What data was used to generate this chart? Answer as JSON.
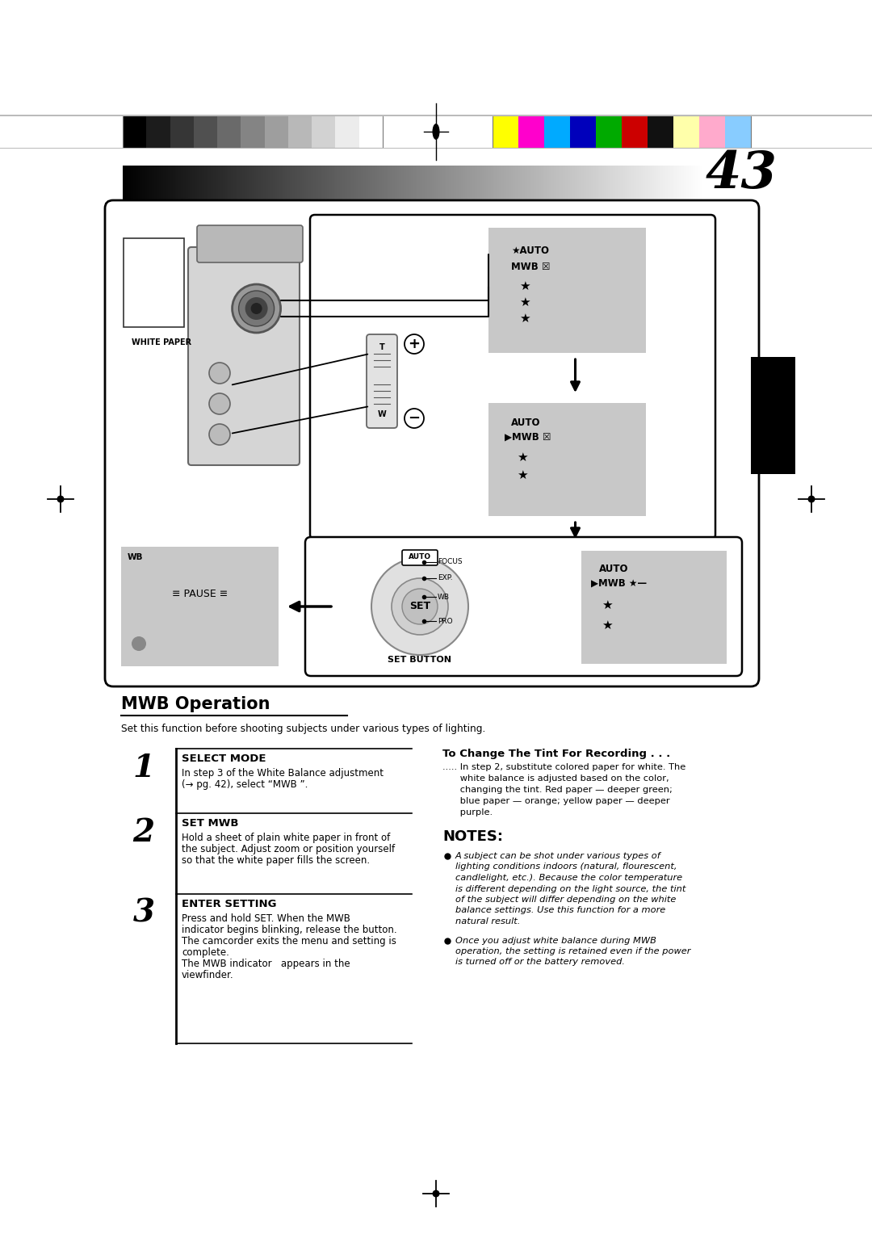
{
  "page_number": "43",
  "background_color": "#ffffff",
  "section_title": "MWB Operation",
  "section_subtitle": "Set this function before shooting subjects under various types of lighting.",
  "step1_title": "SELECT MODE",
  "step1_text_line1": "In step 3 of the White Balance adjustment",
  "step1_text_line2": "(→ pg. 42), select “MWB ”.",
  "step2_title": "SET MWB",
  "step2_text_line1": "Hold a sheet of plain white paper in front of",
  "step2_text_line2": "the subject. Adjust zoom or position yourself",
  "step2_text_line3": "so that the white paper fills the screen.",
  "step3_title": "ENTER SETTING",
  "step3_text_line1": "Press and hold SET. When the MWB",
  "step3_text_line2": "indicator begins blinking, release the button.",
  "step3_text_line3": "The camcorder exits the menu and setting is",
  "step3_text_line4": "complete.",
  "step3_text_line5": "The MWB indicator   appears in the",
  "step3_text_line6": "viewfinder.",
  "side_title": "To Change The Tint For Recording . . .",
  "side_line1": "..... In step 2, substitute colored paper for white. The",
  "side_line2": "      white balance is adjusted based on the color,",
  "side_line3": "      changing the tint. Red paper — deeper green;",
  "side_line4": "      blue paper — orange; yellow paper — deeper",
  "side_line5": "      purple.",
  "notes_title": "NOTES:",
  "note1_line1": "A subject can be shot under various types of",
  "note1_line2": "lighting conditions indoors (natural, flourescent,",
  "note1_line3": "candlelight, etc.). Because the color temperature",
  "note1_line4": "is different depending on the light source, the tint",
  "note1_line5": "of the subject will differ depending on the white",
  "note1_line6": "balance settings. Use this function for a more",
  "note1_line7": "natural result.",
  "note2_line1": "Once you adjust white balance during MWB",
  "note2_line2": "operation, the setting is retained even if the power",
  "note2_line3": "is turned off or the battery removed.",
  "gray_box_color": "#c8c8c8",
  "grayscale_colors": [
    "#000000",
    "#1c1c1c",
    "#363636",
    "#505050",
    "#6a6a6a",
    "#848484",
    "#9e9e9e",
    "#b8b8b8",
    "#d2d2d2",
    "#ececec",
    "#ffffff"
  ],
  "color_bars": [
    "#ffff00",
    "#ff00cc",
    "#00aaff",
    "#0000bb",
    "#00aa00",
    "#cc0000",
    "#111111",
    "#ffffaa",
    "#ffaacc",
    "#88ccff"
  ]
}
